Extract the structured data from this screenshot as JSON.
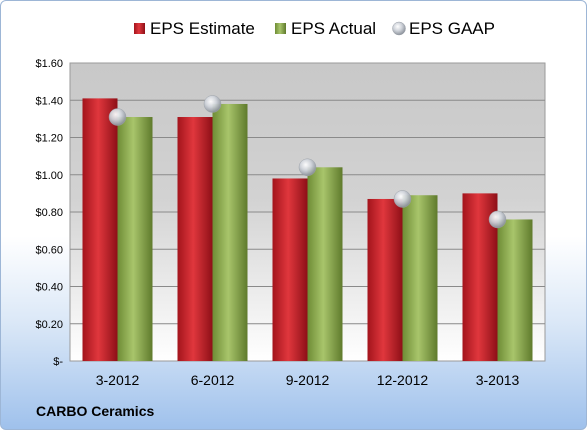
{
  "chart_data": {
    "type": "bar",
    "categories": [
      "3-2012",
      "6-2012",
      "9-2012",
      "12-2012",
      "3-2013"
    ],
    "series": [
      {
        "name": "EPS Estimate",
        "values": [
          1.41,
          1.31,
          0.98,
          0.87,
          0.9
        ],
        "color": "#c0202a"
      },
      {
        "name": "EPS Actual",
        "values": [
          1.31,
          1.38,
          1.04,
          0.89,
          0.76
        ],
        "color": "#8cab4f"
      },
      {
        "name": "EPS GAAP",
        "values": [
          1.31,
          1.38,
          1.04,
          0.87,
          0.76
        ],
        "color": "#c3c8d0",
        "marker": "sphere"
      }
    ],
    "ylim": [
      0,
      1.6
    ],
    "yticks": [
      0,
      0.2,
      0.4,
      0.6,
      0.8,
      1.0,
      1.2,
      1.4,
      1.6
    ],
    "ytick_labels": [
      "$-",
      "$0.20",
      "$0.40",
      "$0.60",
      "$0.80",
      "$1.00",
      "$1.20",
      "$1.40",
      "$1.60"
    ],
    "grid": true,
    "legend_position": "top",
    "company": "CARBO Ceramics"
  }
}
